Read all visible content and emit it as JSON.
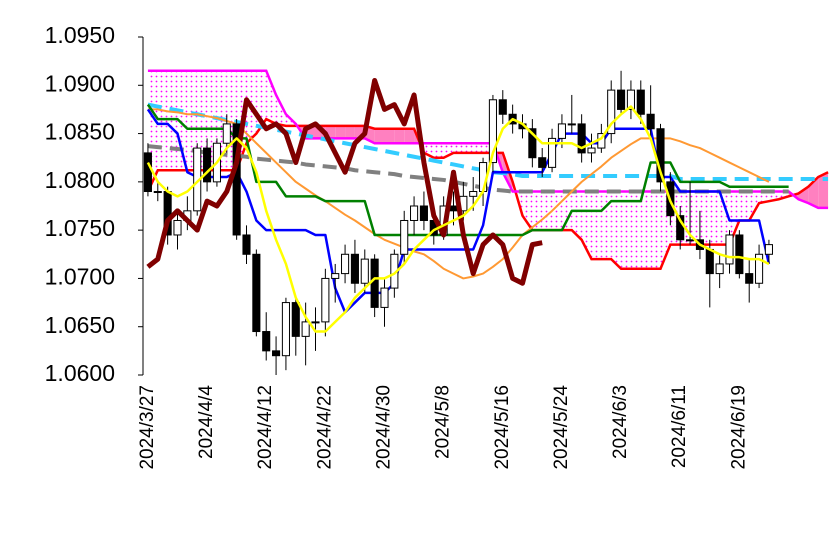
{
  "chart_data": {
    "type": "candlestick",
    "categories": [
      "2024/3/27",
      null,
      null,
      null,
      null,
      null,
      "2024/4/4",
      null,
      null,
      null,
      null,
      null,
      "2024/4/12",
      null,
      null,
      null,
      null,
      null,
      "2024/4/22",
      null,
      null,
      null,
      null,
      null,
      "2024/4/30",
      null,
      null,
      null,
      null,
      null,
      "2024/5/8",
      null,
      null,
      null,
      null,
      null,
      "2024/5/16",
      null,
      null,
      null,
      null,
      null,
      "2024/5/24",
      null,
      null,
      null,
      null,
      null,
      "2024/6/3",
      null,
      null,
      null,
      null,
      null,
      "2024/6/11",
      null,
      null,
      null,
      null,
      null,
      "2024/6/19",
      null,
      null,
      null,
      null,
      null,
      null,
      null,
      null,
      null
    ],
    "open": [
      1.083,
      1.079,
      1.079,
      1.0745,
      1.076,
      1.077,
      1.0835,
      1.08,
      1.084,
      1.086,
      1.0745,
      1.0725,
      1.0645,
      1.0625,
      1.062,
      1.0675,
      1.064,
      1.0655,
      1.0655,
      1.07,
      1.0705,
      1.0725,
      1.0695,
      1.072,
      1.067,
      1.069,
      1.0725,
      1.076,
      1.0775,
      1.076,
      1.0745,
      1.0775,
      1.077,
      1.0785,
      1.079,
      1.082,
      1.0885,
      1.087,
      1.086,
      1.0855,
      1.0825,
      1.0815,
      1.0845,
      1.086,
      1.086,
      1.083,
      1.0835,
      1.085,
      1.0895,
      1.0875,
      1.0895,
      1.087,
      1.0855,
      1.08,
      1.0765,
      1.074,
      1.074,
      1.073,
      1.0705,
      1.0715,
      1.0745,
      1.0705,
      1.0695,
      1.0725,
      null,
      null,
      null,
      null,
      null,
      null
    ],
    "high": [
      1.084,
      1.08,
      1.0795,
      1.077,
      1.0785,
      1.084,
      1.0845,
      1.0845,
      1.087,
      1.0865,
      1.0755,
      1.073,
      1.0665,
      1.064,
      1.068,
      1.068,
      1.0675,
      1.067,
      1.071,
      1.0715,
      1.0735,
      1.074,
      1.073,
      1.0725,
      1.07,
      1.073,
      1.077,
      1.0785,
      1.079,
      1.0775,
      1.0785,
      1.079,
      1.08,
      1.0805,
      1.0825,
      1.089,
      1.0895,
      1.088,
      1.087,
      1.0865,
      1.0835,
      1.0855,
      1.087,
      1.089,
      1.087,
      1.085,
      1.086,
      1.0905,
      1.0915,
      1.0905,
      1.0905,
      1.09,
      1.086,
      1.081,
      1.0775,
      1.08,
      1.077,
      1.074,
      1.0725,
      1.075,
      1.075,
      1.072,
      1.0735,
      1.074,
      null,
      null,
      null,
      null,
      null,
      null
    ],
    "low": [
      1.0785,
      1.078,
      1.0735,
      1.073,
      1.075,
      1.0765,
      1.079,
      1.0795,
      1.083,
      1.074,
      1.0715,
      1.064,
      1.0615,
      1.06,
      1.0605,
      1.062,
      1.061,
      1.0625,
      1.064,
      1.0675,
      1.0695,
      1.0685,
      1.0685,
      1.066,
      1.065,
      1.068,
      1.0715,
      1.0745,
      1.075,
      1.0735,
      1.074,
      1.0755,
      1.076,
      1.077,
      1.0775,
      1.081,
      1.086,
      1.085,
      1.0845,
      1.0815,
      1.0805,
      1.081,
      1.0835,
      1.085,
      1.082,
      1.082,
      1.083,
      1.084,
      1.087,
      1.0865,
      1.086,
      1.0845,
      1.079,
      1.0755,
      1.073,
      1.0735,
      1.072,
      1.067,
      1.069,
      1.0705,
      1.07,
      1.0675,
      1.069,
      1.0715,
      null,
      null,
      null,
      null,
      null,
      null
    ],
    "close": [
      1.079,
      1.079,
      1.0745,
      1.076,
      1.077,
      1.0835,
      1.08,
      1.084,
      1.086,
      1.0745,
      1.0725,
      1.0645,
      1.0625,
      1.062,
      1.0675,
      1.064,
      1.0655,
      1.0655,
      1.07,
      1.0705,
      1.0725,
      1.0695,
      1.072,
      1.067,
      1.069,
      1.0725,
      1.076,
      1.0775,
      1.076,
      1.0745,
      1.0775,
      1.077,
      1.0785,
      1.079,
      1.082,
      1.0885,
      1.087,
      1.086,
      1.0855,
      1.0825,
      1.0815,
      1.0845,
      1.086,
      1.086,
      1.083,
      1.0835,
      1.085,
      1.0895,
      1.0875,
      1.0895,
      1.087,
      1.0855,
      1.08,
      1.0765,
      1.074,
      1.074,
      1.073,
      1.0705,
      1.0715,
      1.0745,
      1.0705,
      1.0695,
      1.0725,
      1.0735,
      null,
      null,
      null,
      null,
      null,
      null
    ],
    "up_color": "#ffffff",
    "down_color": "#000000",
    "ylim": [
      1.06,
      1.095
    ],
    "yticks": [
      {
        "value": 1.06,
        "label": "1.0600"
      },
      {
        "value": 1.065,
        "label": "1.0650"
      },
      {
        "value": 1.07,
        "label": "1.0700"
      },
      {
        "value": 1.075,
        "label": "1.0750"
      },
      {
        "value": 1.08,
        "label": "1.0800"
      },
      {
        "value": 1.085,
        "label": "1.0850"
      },
      {
        "value": 1.09,
        "label": "1.0900"
      },
      {
        "value": 1.095,
        "label": "1.0950"
      }
    ],
    "cloud": {
      "fill_a_above": "#ff80c0",
      "fill_b_above": "#ff00ff",
      "span_a": {
        "color": "#ff0000",
        "values": [
          1.079,
          1.0812,
          1.0812,
          1.0812,
          1.0812,
          1.0812,
          1.0812,
          1.0812,
          1.0812,
          1.0812,
          1.084,
          1.085,
          1.0865,
          1.086,
          1.0858,
          1.0858,
          1.0858,
          1.0858,
          1.0858,
          1.0858,
          1.0858,
          1.0858,
          1.0858,
          1.0855,
          1.0855,
          1.0855,
          1.0855,
          1.0855,
          1.083,
          1.0825,
          1.0825,
          1.083,
          1.083,
          1.083,
          1.083,
          1.083,
          1.083,
          1.08,
          1.0765,
          1.075,
          1.075,
          1.075,
          1.075,
          1.075,
          1.074,
          1.072,
          1.072,
          1.072,
          1.071,
          1.071,
          1.071,
          1.071,
          1.071,
          1.0735,
          1.0735,
          1.0735,
          1.0735,
          1.0735,
          1.0735,
          1.0735,
          1.076,
          1.076,
          1.0778,
          1.078,
          1.0782,
          1.0785,
          1.0788,
          1.0795,
          1.0805,
          1.081
        ]
      },
      "span_b": {
        "color": "#ff00ff",
        "values": [
          1.0915,
          1.0915,
          1.0915,
          1.0915,
          1.0915,
          1.0915,
          1.0915,
          1.0915,
          1.0915,
          1.0915,
          1.0915,
          1.0915,
          1.0915,
          1.089,
          1.087,
          1.086,
          1.0845,
          1.0845,
          1.0845,
          1.0845,
          1.0845,
          1.0845,
          1.0845,
          1.084,
          1.084,
          1.084,
          1.084,
          1.084,
          1.084,
          1.084,
          1.084,
          1.084,
          1.084,
          1.084,
          1.084,
          1.084,
          1.081,
          1.079,
          1.079,
          1.079,
          1.079,
          1.079,
          1.079,
          1.079,
          1.079,
          1.079,
          1.079,
          1.079,
          1.079,
          1.079,
          1.079,
          1.079,
          1.079,
          1.079,
          1.079,
          1.079,
          1.079,
          1.079,
          1.079,
          1.079,
          1.079,
          1.079,
          1.079,
          1.079,
          1.079,
          1.079,
          1.0782,
          1.0778,
          1.0773,
          1.0773
        ]
      }
    },
    "series": [
      {
        "color": "#33ccff",
        "dash": true,
        "line_width": 4,
        "values": [
          1.088,
          1.0878,
          1.0876,
          1.0874,
          1.0872,
          1.087,
          1.0868,
          1.0866,
          1.0864,
          1.0862,
          1.086,
          1.0858,
          1.0856,
          1.0854,
          1.0852,
          1.085,
          1.0848,
          1.0846,
          1.0844,
          1.0842,
          1.084,
          1.0838,
          1.0836,
          1.0834,
          1.0832,
          1.083,
          1.0828,
          1.0826,
          1.0824,
          1.0822,
          1.082,
          1.0818,
          1.0816,
          1.0814,
          1.0812,
          1.081,
          1.0809,
          1.0808,
          1.0806,
          1.0806,
          1.0806,
          1.0806,
          1.0806,
          1.0806,
          1.0806,
          1.0806,
          1.0806,
          1.0806,
          1.0806,
          1.0806,
          1.0806,
          1.0806,
          1.0806,
          1.0806,
          1.0803,
          1.0803,
          1.0803,
          1.0803,
          1.0803,
          1.0803,
          1.0803,
          1.0803,
          1.0803,
          1.0803,
          1.0803,
          1.0803,
          1.0803,
          1.0803,
          1.0803,
          1.0803
        ]
      },
      {
        "color": "#808080",
        "dash": true,
        "line_width": 4,
        "values": [
          1.0837,
          1.0836,
          1.0835,
          1.0834,
          1.0833,
          1.0832,
          1.083,
          1.0829,
          1.0828,
          1.0827,
          1.0826,
          1.0824,
          1.0823,
          1.0822,
          1.0821,
          1.082,
          1.0818,
          1.0817,
          1.0816,
          1.0815,
          1.0814,
          1.0812,
          1.0811,
          1.081,
          1.0809,
          1.0808,
          1.0806,
          1.0805,
          1.0804,
          1.0803,
          1.0802,
          1.08,
          1.0798,
          1.0796,
          1.0794,
          1.0792,
          1.0791,
          1.079,
          1.079,
          1.079,
          1.079,
          1.079,
          1.079,
          1.079,
          1.079,
          1.079,
          1.079,
          1.079,
          1.079,
          1.079,
          1.079,
          1.079,
          1.079,
          1.079,
          1.079,
          1.079,
          1.079,
          1.079,
          1.079,
          1.079,
          1.079,
          1.079,
          1.079,
          1.079,
          1.079,
          1.079,
          null,
          null,
          null,
          null
        ]
      },
      {
        "color": "#ff9933",
        "dash": false,
        "line_width": 2,
        "values": [
          1.0875,
          1.0875,
          1.0873,
          1.0872,
          1.087,
          1.087,
          1.0868,
          1.0866,
          1.0863,
          1.086,
          1.085,
          1.084,
          1.083,
          1.082,
          1.081,
          1.08,
          1.0793,
          1.0786,
          1.078,
          1.0773,
          1.0766,
          1.076,
          1.0753,
          1.0746,
          1.074,
          1.0736,
          1.0732,
          1.0728,
          1.0725,
          1.0718,
          1.071,
          1.0705,
          1.07,
          1.0702,
          1.0705,
          1.0712,
          1.072,
          1.0732,
          1.0745,
          1.0753,
          1.0761,
          1.077,
          1.078,
          1.079,
          1.08,
          1.0808,
          1.0816,
          1.0825,
          1.0832,
          1.0839,
          1.0845,
          1.0845,
          1.0845,
          1.0845,
          1.0842,
          1.0838,
          1.0835,
          1.083,
          1.0825,
          1.082,
          1.0815,
          1.081,
          1.0805,
          1.08,
          null,
          null,
          null,
          null,
          null,
          null
        ]
      },
      {
        "color": "#008000",
        "dash": false,
        "line_width": 2.5,
        "values": [
          1.088,
          1.0865,
          1.0865,
          1.0865,
          1.0855,
          1.0855,
          1.0855,
          1.0855,
          1.0855,
          1.0845,
          1.0845,
          1.08,
          1.08,
          1.08,
          1.0785,
          1.0785,
          1.0785,
          1.0785,
          1.078,
          1.078,
          1.078,
          1.078,
          1.078,
          1.0745,
          1.0745,
          1.0745,
          1.0745,
          1.0745,
          1.0745,
          1.0745,
          1.0745,
          1.0745,
          1.0745,
          1.0745,
          1.0745,
          1.0745,
          1.0745,
          1.0745,
          1.0745,
          1.075,
          1.075,
          1.075,
          1.075,
          1.077,
          1.077,
          1.077,
          1.077,
          1.078,
          1.078,
          1.078,
          1.078,
          1.082,
          1.082,
          1.082,
          1.08,
          1.08,
          1.08,
          1.08,
          1.08,
          1.0795,
          1.0795,
          1.0795,
          1.0795,
          1.0795,
          1.0795,
          1.0795,
          null,
          null,
          null,
          null
        ]
      },
      {
        "color": "#0000ff",
        "dash": false,
        "line_width": 2.5,
        "values": [
          1.0875,
          1.086,
          1.086,
          1.085,
          1.081,
          1.0805,
          1.0805,
          1.0805,
          1.0805,
          1.081,
          1.079,
          1.076,
          1.075,
          1.075,
          1.075,
          1.075,
          1.075,
          1.0745,
          1.0745,
          1.069,
          1.0665,
          1.0675,
          1.0685,
          1.0685,
          1.0685,
          1.0695,
          1.073,
          1.073,
          1.073,
          1.073,
          1.073,
          1.073,
          1.073,
          1.073,
          1.0755,
          1.081,
          1.081,
          1.081,
          1.081,
          1.081,
          1.081,
          1.083,
          1.085,
          1.085,
          1.085,
          1.084,
          1.084,
          1.0855,
          1.0855,
          1.0855,
          1.0855,
          1.0855,
          1.0805,
          1.0805,
          1.079,
          1.079,
          1.079,
          1.079,
          1.079,
          1.076,
          1.076,
          1.076,
          1.076,
          1.0715,
          null,
          null,
          null,
          null,
          null,
          null
        ]
      },
      {
        "color": "#800000",
        "dash": false,
        "line_width": 5,
        "values": [
          1.0712,
          1.072,
          1.076,
          1.077,
          1.076,
          1.075,
          1.078,
          1.0775,
          1.079,
          1.082,
          1.0885,
          1.087,
          1.0855,
          1.086,
          1.085,
          1.082,
          1.0855,
          1.086,
          1.085,
          1.083,
          1.081,
          1.084,
          1.085,
          1.0905,
          1.0875,
          1.088,
          1.086,
          1.089,
          1.082,
          1.0765,
          1.0745,
          1.081,
          1.0745,
          1.0705,
          1.0735,
          1.0745,
          1.0735,
          1.07,
          1.0695,
          1.0735,
          1.0737,
          null,
          null,
          null,
          null,
          null,
          null,
          null,
          null,
          null,
          null,
          null,
          null,
          null,
          null,
          null,
          null,
          null,
          null,
          null,
          null,
          null,
          null,
          null,
          null,
          null,
          null,
          null,
          null,
          null
        ]
      },
      {
        "color": "#ffff00",
        "dash": false,
        "line_width": 2.5,
        "values": [
          1.082,
          1.08,
          1.079,
          1.0785,
          1.079,
          1.08,
          1.081,
          1.082,
          1.0835,
          1.0845,
          1.0835,
          1.081,
          1.077,
          1.074,
          1.0715,
          1.068,
          1.066,
          1.0645,
          1.0645,
          1.0655,
          1.0665,
          1.068,
          1.069,
          1.07,
          1.07,
          1.0705,
          1.0715,
          1.073,
          1.074,
          1.075,
          1.0755,
          1.076,
          1.0765,
          1.0775,
          1.079,
          1.083,
          1.0855,
          1.0865,
          1.086,
          1.085,
          1.084,
          1.084,
          1.084,
          1.084,
          1.0835,
          1.084,
          1.0845,
          1.086,
          1.087,
          1.0878,
          1.0865,
          1.0845,
          1.081,
          1.078,
          1.076,
          1.0745,
          1.0735,
          1.073,
          1.0725,
          1.0722,
          1.0722,
          1.072,
          1.072,
          1.0715,
          null,
          null,
          null,
          null,
          null,
          null
        ]
      }
    ]
  }
}
